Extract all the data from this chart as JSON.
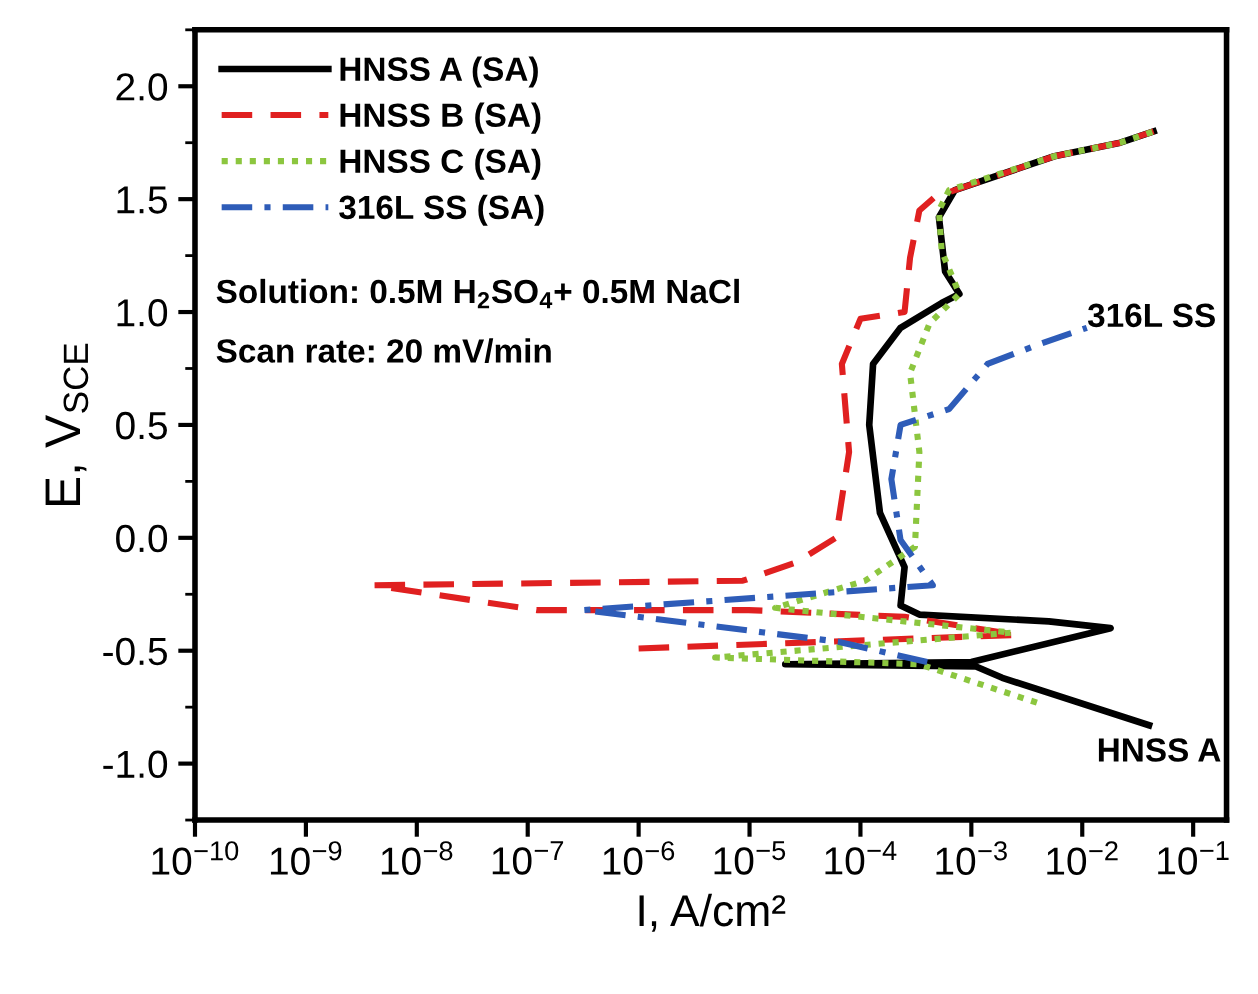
{
  "chart_data": {
    "type": "line",
    "xlabel": "I, A/cm²",
    "ylabel": "E, V$_{SCE}$",
    "log": "x",
    "grid": false,
    "legend": "top left",
    "marker": "none",
    "xlim": [
      1e-10,
      0.2
    ],
    "ylim": [
      -1.25,
      2.25
    ],
    "xticks": [
      {
        "value": 1e-10,
        "label": "10$^{−10}$"
      },
      {
        "value": 1e-09,
        "label": "10$^{−9}$"
      },
      {
        "value": 1e-08,
        "label": "10$^{−8}$"
      },
      {
        "value": 1e-07,
        "label": "10$^{−7}$"
      },
      {
        "value": 1e-06,
        "label": "10$^{−6}$"
      },
      {
        "value": 1e-05,
        "label": "10$^{−5}$"
      },
      {
        "value": 0.0001,
        "label": "10$^{−4}$"
      },
      {
        "value": 0.001,
        "label": "10$^{−3}$"
      },
      {
        "value": 0.01,
        "label": "10$^{−2}$"
      },
      {
        "value": 0.1,
        "label": "10$^{−1}$"
      }
    ],
    "yticks": [
      {
        "value": -1,
        "label": "-1.0"
      },
      {
        "value": -0.5,
        "label": "-0.5"
      },
      {
        "value": 0,
        "label": "0.0"
      },
      {
        "value": 0.5,
        "label": "0.5"
      },
      {
        "value": 1,
        "label": "1.0"
      },
      {
        "value": 1.5,
        "label": "1.5"
      },
      {
        "value": 2,
        "label": "2.0"
      }
    ],
    "series": [
      {
        "name": "HNSS A (SA)",
        "color": "#000000",
        "line_style": "solid",
        "x": [
          0.04,
          0.0019,
          0.0011,
          2.1e-05,
          0.001,
          0.018,
          0.005,
          0.00034,
          0.00023,
          0.00025,
          0.00015,
          0.00012,
          0.00013,
          0.00023,
          0.00054,
          0.00078,
          0.00058,
          0.00051,
          0.00071,
          0.0056,
          0.022,
          0.044
        ],
        "values": [
          -0.83,
          -0.62,
          -0.57,
          -0.56,
          -0.55,
          -0.4,
          -0.37,
          -0.34,
          -0.3,
          -0.13,
          0.11,
          0.5,
          0.77,
          0.93,
          1.04,
          1.08,
          1.18,
          1.42,
          1.54,
          1.69,
          1.75,
          1.8
        ]
      },
      {
        "name": "HNSS B (SA)",
        "color": "#e02020",
        "line_style": "dashed",
        "x": [
          1e-06,
          0.0026,
          0.00025,
          9.8e-06,
          1.2e-07,
          4.1e-09,
          8.7e-06,
          2.6e-05,
          6e-05,
          7.9e-05,
          6.8e-05,
          0.0001,
          0.00025,
          0.00028,
          0.00034,
          0.00047,
          0.0056,
          0.022,
          0.044
        ],
        "values": [
          -0.49,
          -0.43,
          -0.35,
          -0.32,
          -0.32,
          -0.21,
          -0.19,
          -0.11,
          0.0,
          0.38,
          0.77,
          0.97,
          1.0,
          1.24,
          1.45,
          1.51,
          1.69,
          1.75,
          1.8
        ]
      },
      {
        "name": "HNSS C (SA)",
        "color": "#8cc63f",
        "line_style": "dotted",
        "x": [
          0.0039,
          0.00034,
          4.9e-06,
          0.0023,
          1.7e-05,
          0.00011,
          0.00031,
          0.00034,
          0.00028,
          0.00042,
          0.00078,
          0.00054,
          0.00051,
          0.00063,
          0.0056,
          0.022,
          0.044
        ],
        "values": [
          -0.73,
          -0.56,
          -0.53,
          -0.42,
          -0.31,
          -0.19,
          -0.04,
          0.38,
          0.73,
          0.95,
          1.08,
          1.27,
          1.45,
          1.54,
          1.69,
          1.75,
          1.8
        ]
      },
      {
        "name": "316L SS (SA)",
        "color": "#2e5cb8",
        "line_style": "dashdot",
        "x": [
          0.0004,
          6.3e-05,
          3.2e-07,
          0.00045,
          0.00023,
          0.00019,
          0.00023,
          0.00063,
          0.0014,
          0.0042,
          0.011
        ],
        "values": [
          -0.55,
          -0.46,
          -0.32,
          -0.21,
          -0.01,
          0.26,
          0.5,
          0.57,
          0.77,
          0.86,
          0.93
        ]
      }
    ],
    "annotations": [
      "Solution: 0.5M H$_{2}$SO$_{4}$+ 0.5M NaCl",
      "Scan rate: 20 mV/min",
      "316L SS",
      "HNSS A"
    ]
  }
}
